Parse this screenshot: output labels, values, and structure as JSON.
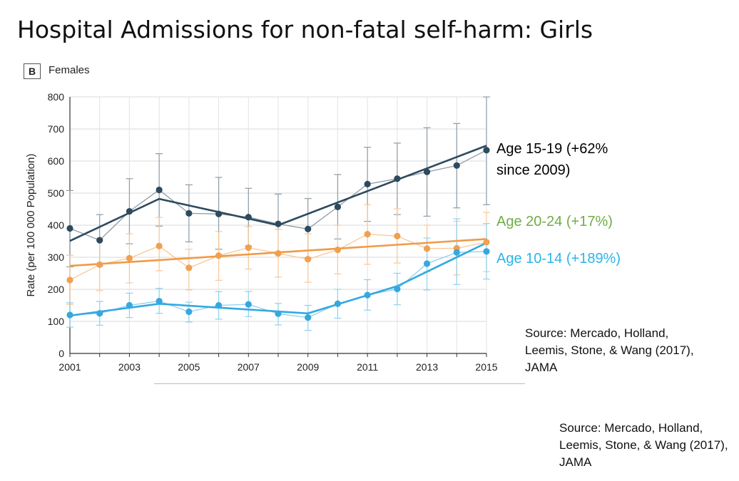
{
  "slide": {
    "title": "Hospital Admissions for non-fatal self-harm: Girls",
    "panel_badge": "B",
    "panel_label": "Females"
  },
  "chart_data": {
    "type": "line",
    "ylabel": "Rate (per 100 000 Population)",
    "xlabel": "",
    "ylim": [
      0,
      800
    ],
    "xlim": [
      2001,
      2015
    ],
    "y_ticks": [
      0,
      100,
      200,
      300,
      400,
      500,
      600,
      700,
      800
    ],
    "x_ticks": [
      2001,
      2003,
      2005,
      2007,
      2009,
      2011,
      2013,
      2015
    ],
    "x": [
      2001,
      2002,
      2003,
      2004,
      2005,
      2006,
      2007,
      2008,
      2009,
      2010,
      2011,
      2012,
      2013,
      2014,
      2015
    ],
    "series": [
      {
        "name": "Age 15-19",
        "color": "#2d4a5e",
        "values": [
          390,
          353,
          443,
          510,
          437,
          435,
          425,
          404,
          388,
          457,
          528,
          545,
          566,
          586,
          634
        ],
        "error_low": [
          270,
          273,
          342,
          397,
          348,
          325,
          335,
          310,
          298,
          357,
          412,
          433,
          428,
          454,
          464
        ],
        "error_high": [
          508,
          433,
          545,
          623,
          526,
          549,
          515,
          497,
          483,
          558,
          643,
          656,
          704,
          717,
          800
        ],
        "trend": [
          [
            2001,
            351
          ],
          [
            2004,
            482
          ],
          [
            2008,
            400
          ],
          [
            2015,
            648
          ]
        ]
      },
      {
        "name": "Age 20-24",
        "color": "#f0a050",
        "values": [
          229,
          277,
          297,
          335,
          267,
          305,
          330,
          312,
          294,
          323,
          372,
          366,
          327,
          328,
          347
        ],
        "error_low": [
          153,
          196,
          220,
          258,
          198,
          228,
          263,
          238,
          222,
          248,
          278,
          282,
          255,
          245,
          255
        ],
        "error_high": [
          306,
          358,
          373,
          424,
          325,
          380,
          395,
          387,
          373,
          400,
          464,
          451,
          400,
          412,
          440
        ],
        "trend": [
          [
            2001,
            273
          ],
          [
            2015,
            357
          ]
        ]
      },
      {
        "name": "Age 10-14",
        "color": "#35a8e0",
        "values": [
          120,
          125,
          150,
          163,
          130,
          150,
          153,
          124,
          112,
          155,
          182,
          201,
          280,
          315,
          318
        ],
        "error_low": [
          82,
          88,
          112,
          125,
          98,
          107,
          115,
          89,
          72,
          110,
          135,
          152,
          198,
          215,
          232
        ],
        "error_high": [
          158,
          162,
          188,
          203,
          160,
          193,
          193,
          156,
          150,
          200,
          230,
          250,
          360,
          420,
          405
        ],
        "trend": [
          [
            2001,
            118
          ],
          [
            2004,
            155
          ],
          [
            2009,
            125
          ],
          [
            2012,
            210
          ],
          [
            2015,
            345
          ]
        ]
      }
    ]
  },
  "annotations": {
    "age_1519_line1": "Age 15-19 (+62%",
    "age_1519_line2": "since 2009)",
    "age_2024": "Age 20-24 (+17%)",
    "age_1014": "Age 10-14 (+189%)"
  },
  "sources": {
    "source_1": "Source: Mercado, Holland, Leemis, Stone, & Wang (2017), JAMA",
    "source_2": "Source: Mercado, Holland, Leemis, Stone, & Wang (2017), JAMA"
  }
}
